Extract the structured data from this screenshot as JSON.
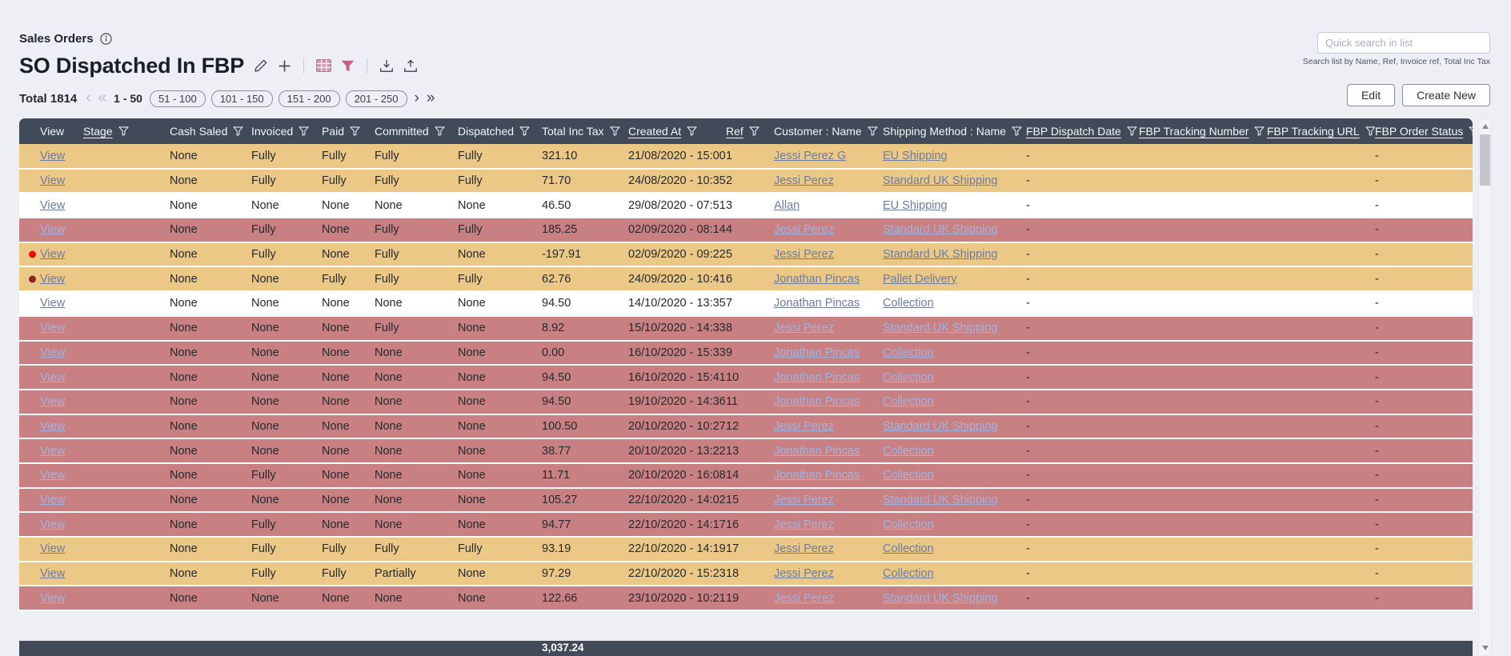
{
  "page": {
    "section_title": "Sales Orders",
    "list_title": "SO Dispatched In FBP"
  },
  "search": {
    "placeholder": "Quick search in list",
    "helper": "Search list by Name, Ref, Invoice ref, Total Inc Tax"
  },
  "actions": {
    "edit": "Edit",
    "create_new": "Create New"
  },
  "pagination": {
    "total_label": "Total 1814",
    "current": "1 - 50",
    "pages": [
      "51 - 100",
      "101 - 150",
      "151 - 200",
      "201 - 250"
    ],
    "icons": {
      "prev": "‹",
      "first": "«",
      "next": "›",
      "last": "»"
    }
  },
  "colors": {
    "header_bg": "#404a59",
    "row_tan": "#ecc886",
    "row_red": "#c98083",
    "row_white": "#ffffff",
    "accent_pink": "#c45f84",
    "link": "#6d7c9d",
    "link_on_red": "#a4b2df",
    "dot_red": "#e3120b",
    "dot_maroon": "#8a2420"
  },
  "table": {
    "columns": [
      {
        "key": "view",
        "label": "View",
        "filter": false,
        "underline": false
      },
      {
        "key": "stage",
        "label": "Stage",
        "filter": true,
        "underline": true
      },
      {
        "key": "cash_saled",
        "label": "Cash Saled",
        "filter": true,
        "underline": false
      },
      {
        "key": "invoiced",
        "label": "Invoiced",
        "filter": true,
        "underline": false
      },
      {
        "key": "paid",
        "label": "Paid",
        "filter": true,
        "underline": false
      },
      {
        "key": "committed",
        "label": "Committed",
        "filter": true,
        "underline": false
      },
      {
        "key": "dispatched",
        "label": "Dispatched",
        "filter": true,
        "underline": false
      },
      {
        "key": "total_inc_tax",
        "label": "Total Inc Tax",
        "filter": true,
        "underline": false
      },
      {
        "key": "created_at",
        "label": "Created At",
        "filter": true,
        "underline": true
      },
      {
        "key": "ref",
        "label": "Ref",
        "filter": true,
        "underline": true
      },
      {
        "key": "customer",
        "label": "Customer : Name",
        "filter": true,
        "underline": false
      },
      {
        "key": "shipping",
        "label": "Shipping Method : Name",
        "filter": true,
        "underline": false
      },
      {
        "key": "fbp_dispatch_date",
        "label": "FBP Dispatch Date",
        "filter": true,
        "underline": true
      },
      {
        "key": "fbp_tracking_number",
        "label": "FBP Tracking Number",
        "filter": true,
        "underline": true
      },
      {
        "key": "fbp_tracking_url",
        "label": "FBP Tracking URL",
        "filter": true,
        "underline": true
      },
      {
        "key": "fbp_order_status",
        "label": "FBP Order Status",
        "filter": true,
        "underline": true
      }
    ],
    "rows": [
      {
        "tone": "tan",
        "dot": null,
        "view": "View",
        "stage": "",
        "cash_saled": "None",
        "invoiced": "Fully",
        "paid": "Fully",
        "committed": "Fully",
        "dispatched": "Fully",
        "total_inc_tax": "321.10",
        "created_at": "21/08/2020 - 15:00",
        "ref": "1",
        "customer": "Jessi Perez G",
        "shipping": "EU Shipping",
        "fbp_dispatch_date": "-",
        "fbp_tracking_number": "",
        "fbp_tracking_url": "",
        "fbp_order_status": "-"
      },
      {
        "tone": "tan",
        "dot": null,
        "view": "View",
        "stage": "",
        "cash_saled": "None",
        "invoiced": "Fully",
        "paid": "Fully",
        "committed": "Fully",
        "dispatched": "Fully",
        "total_inc_tax": "71.70",
        "created_at": "24/08/2020 - 10:35",
        "ref": "2",
        "customer": "Jessi Perez",
        "shipping": "Standard UK Shipping",
        "fbp_dispatch_date": "-",
        "fbp_tracking_number": "",
        "fbp_tracking_url": "",
        "fbp_order_status": "-"
      },
      {
        "tone": "white",
        "dot": null,
        "view": "View",
        "stage": "",
        "cash_saled": "None",
        "invoiced": "None",
        "paid": "None",
        "committed": "None",
        "dispatched": "None",
        "total_inc_tax": "46.50",
        "created_at": "29/08/2020 - 07:51",
        "ref": "3",
        "customer": "Allan",
        "shipping": "EU Shipping",
        "fbp_dispatch_date": "-",
        "fbp_tracking_number": "",
        "fbp_tracking_url": "",
        "fbp_order_status": "-"
      },
      {
        "tone": "red",
        "dot": null,
        "view": "View",
        "stage": "",
        "cash_saled": "None",
        "invoiced": "Fully",
        "paid": "None",
        "committed": "Fully",
        "dispatched": "Fully",
        "total_inc_tax": "185.25",
        "created_at": "02/09/2020 - 08:14",
        "ref": "4",
        "customer": "Jessi Perez",
        "shipping": "Standard UK Shipping",
        "fbp_dispatch_date": "-",
        "fbp_tracking_number": "",
        "fbp_tracking_url": "",
        "fbp_order_status": "-"
      },
      {
        "tone": "tan",
        "dot": "red",
        "view": "View",
        "stage": "",
        "cash_saled": "None",
        "invoiced": "Fully",
        "paid": "None",
        "committed": "Fully",
        "dispatched": "None",
        "total_inc_tax": "-197.91",
        "created_at": "02/09/2020 - 09:22",
        "ref": "5",
        "customer": "Jessi Perez",
        "shipping": "Standard UK Shipping",
        "fbp_dispatch_date": "-",
        "fbp_tracking_number": "",
        "fbp_tracking_url": "",
        "fbp_order_status": "-"
      },
      {
        "tone": "tan",
        "dot": "maroon",
        "view": "View",
        "stage": "",
        "cash_saled": "None",
        "invoiced": "None",
        "paid": "Fully",
        "committed": "Fully",
        "dispatched": "Fully",
        "total_inc_tax": "62.76",
        "created_at": "24/09/2020 - 10:41",
        "ref": "6",
        "customer": "Jonathan Pincas",
        "shipping": "Pallet Delivery",
        "fbp_dispatch_date": "-",
        "fbp_tracking_number": "",
        "fbp_tracking_url": "",
        "fbp_order_status": "-"
      },
      {
        "tone": "white",
        "dot": null,
        "view": "View",
        "stage": "",
        "cash_saled": "None",
        "invoiced": "None",
        "paid": "None",
        "committed": "None",
        "dispatched": "None",
        "total_inc_tax": "94.50",
        "created_at": "14/10/2020 - 13:35",
        "ref": "7",
        "customer": "Jonathan Pincas",
        "shipping": "Collection",
        "fbp_dispatch_date": "-",
        "fbp_tracking_number": "",
        "fbp_tracking_url": "",
        "fbp_order_status": "-"
      },
      {
        "tone": "red",
        "dot": null,
        "view": "View",
        "stage": "",
        "cash_saled": "None",
        "invoiced": "None",
        "paid": "None",
        "committed": "Fully",
        "dispatched": "None",
        "total_inc_tax": "8.92",
        "created_at": "15/10/2020 - 14:33",
        "ref": "8",
        "customer": "Jessi Perez",
        "shipping": "Standard UK Shipping",
        "fbp_dispatch_date": "-",
        "fbp_tracking_number": "",
        "fbp_tracking_url": "",
        "fbp_order_status": "-"
      },
      {
        "tone": "red",
        "dot": null,
        "view": "View",
        "stage": "",
        "cash_saled": "None",
        "invoiced": "None",
        "paid": "None",
        "committed": "None",
        "dispatched": "None",
        "total_inc_tax": "0.00",
        "created_at": "16/10/2020 - 15:33",
        "ref": "9",
        "customer": "Jonathan Pincas",
        "shipping": "Collection",
        "fbp_dispatch_date": "-",
        "fbp_tracking_number": "",
        "fbp_tracking_url": "",
        "fbp_order_status": "-"
      },
      {
        "tone": "red",
        "dot": null,
        "view": "View",
        "stage": "",
        "cash_saled": "None",
        "invoiced": "None",
        "paid": "None",
        "committed": "None",
        "dispatched": "None",
        "total_inc_tax": "94.50",
        "created_at": "16/10/2020 - 15:41",
        "ref": "10",
        "customer": "Jonathan Pincas",
        "shipping": "Collection",
        "fbp_dispatch_date": "-",
        "fbp_tracking_number": "",
        "fbp_tracking_url": "",
        "fbp_order_status": "-"
      },
      {
        "tone": "red",
        "dot": null,
        "view": "View",
        "stage": "",
        "cash_saled": "None",
        "invoiced": "None",
        "paid": "None",
        "committed": "None",
        "dispatched": "None",
        "total_inc_tax": "94.50",
        "created_at": "19/10/2020 - 14:36",
        "ref": "11",
        "customer": "Jonathan Pincas",
        "shipping": "Collection",
        "fbp_dispatch_date": "-",
        "fbp_tracking_number": "",
        "fbp_tracking_url": "",
        "fbp_order_status": "-"
      },
      {
        "tone": "red",
        "dot": null,
        "view": "View",
        "stage": "",
        "cash_saled": "None",
        "invoiced": "None",
        "paid": "None",
        "committed": "None",
        "dispatched": "None",
        "total_inc_tax": "100.50",
        "created_at": "20/10/2020 - 10:27",
        "ref": "12",
        "customer": "Jessi Perez",
        "shipping": "Standard UK Shipping",
        "fbp_dispatch_date": "-",
        "fbp_tracking_number": "",
        "fbp_tracking_url": "",
        "fbp_order_status": "-"
      },
      {
        "tone": "red",
        "dot": null,
        "view": "View",
        "stage": "",
        "cash_saled": "None",
        "invoiced": "None",
        "paid": "None",
        "committed": "None",
        "dispatched": "None",
        "total_inc_tax": "38.77",
        "created_at": "20/10/2020 - 13:22",
        "ref": "13",
        "customer": "Jonathan Pincas",
        "shipping": "Collection",
        "fbp_dispatch_date": "-",
        "fbp_tracking_number": "",
        "fbp_tracking_url": "",
        "fbp_order_status": "-"
      },
      {
        "tone": "red",
        "dot": null,
        "view": "View",
        "stage": "",
        "cash_saled": "None",
        "invoiced": "Fully",
        "paid": "None",
        "committed": "None",
        "dispatched": "None",
        "total_inc_tax": "11.71",
        "created_at": "20/10/2020 - 16:08",
        "ref": "14",
        "customer": "Jonathan Pincas",
        "shipping": "Collection",
        "fbp_dispatch_date": "-",
        "fbp_tracking_number": "",
        "fbp_tracking_url": "",
        "fbp_order_status": "-"
      },
      {
        "tone": "red",
        "dot": null,
        "view": "View",
        "stage": "",
        "cash_saled": "None",
        "invoiced": "None",
        "paid": "None",
        "committed": "None",
        "dispatched": "None",
        "total_inc_tax": "105.27",
        "created_at": "22/10/2020 - 14:02",
        "ref": "15",
        "customer": "Jessi Perez",
        "shipping": "Standard UK Shipping",
        "fbp_dispatch_date": "-",
        "fbp_tracking_number": "",
        "fbp_tracking_url": "",
        "fbp_order_status": "-"
      },
      {
        "tone": "red",
        "dot": null,
        "view": "View",
        "stage": "",
        "cash_saled": "None",
        "invoiced": "Fully",
        "paid": "None",
        "committed": "None",
        "dispatched": "None",
        "total_inc_tax": "94.77",
        "created_at": "22/10/2020 - 14:17",
        "ref": "16",
        "customer": "Jessi Perez",
        "shipping": "Collection",
        "fbp_dispatch_date": "-",
        "fbp_tracking_number": "",
        "fbp_tracking_url": "",
        "fbp_order_status": "-"
      },
      {
        "tone": "tan",
        "dot": null,
        "view": "View",
        "stage": "",
        "cash_saled": "None",
        "invoiced": "Fully",
        "paid": "Fully",
        "committed": "Fully",
        "dispatched": "Fully",
        "total_inc_tax": "93.19",
        "created_at": "22/10/2020 - 14:19",
        "ref": "17",
        "customer": "Jessi Perez",
        "shipping": "Collection",
        "fbp_dispatch_date": "-",
        "fbp_tracking_number": "",
        "fbp_tracking_url": "",
        "fbp_order_status": "-"
      },
      {
        "tone": "tan",
        "dot": null,
        "view": "View",
        "stage": "",
        "cash_saled": "None",
        "invoiced": "Fully",
        "paid": "Fully",
        "committed": "Partially",
        "dispatched": "None",
        "total_inc_tax": "97.29",
        "created_at": "22/10/2020 - 15:23",
        "ref": "18",
        "customer": "Jessi Perez",
        "shipping": "Collection",
        "fbp_dispatch_date": "-",
        "fbp_tracking_number": "",
        "fbp_tracking_url": "",
        "fbp_order_status": "-"
      },
      {
        "tone": "red",
        "dot": null,
        "view": "View",
        "stage": "",
        "cash_saled": "None",
        "invoiced": "None",
        "paid": "None",
        "committed": "None",
        "dispatched": "None",
        "total_inc_tax": "122.66",
        "created_at": "23/10/2020 - 10:21",
        "ref": "19",
        "customer": "Jessi Perez",
        "shipping": "Standard UK Shipping",
        "fbp_dispatch_date": "-",
        "fbp_tracking_number": "",
        "fbp_tracking_url": "",
        "fbp_order_status": "-"
      }
    ],
    "footer_total": "3,037.24"
  }
}
